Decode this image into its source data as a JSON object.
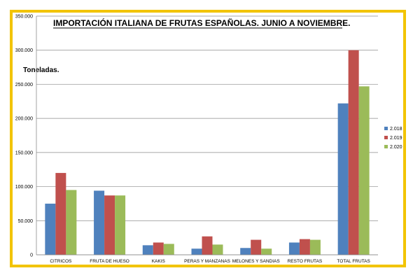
{
  "chart_data": {
    "type": "bar",
    "title": "IMPORTACIÓN ITALIANA DE FRUTAS ESPAÑOLAS. JUNIO A NOVIEMBRE.",
    "unit_label": "Toneladas.",
    "categories": [
      "CITRICOS",
      "FRUTA DE HUESO",
      "KAKIS",
      "PERAS Y MANZANAS",
      "MELONES Y SANDIAS",
      "RESTO FRUTAS",
      "TOTAL FRUTAS"
    ],
    "series": [
      {
        "name": "2.018",
        "color": "#4f81bd",
        "values": [
          75000,
          94000,
          14000,
          9000,
          10000,
          18000,
          222000
        ]
      },
      {
        "name": "2.019",
        "color": "#c0504d",
        "values": [
          120000,
          87000,
          18000,
          27000,
          22000,
          23000,
          300000
        ]
      },
      {
        "name": "2.020",
        "color": "#9bbb59",
        "values": [
          95000,
          87000,
          16000,
          15000,
          9000,
          22000,
          247000
        ]
      }
    ],
    "ylim": [
      0,
      350000
    ],
    "yticks": [
      "0",
      "50.000",
      "100.000",
      "150.000",
      "200.000",
      "250.000",
      "300.000",
      "350.000"
    ],
    "grid": true,
    "legend_position": "right"
  }
}
